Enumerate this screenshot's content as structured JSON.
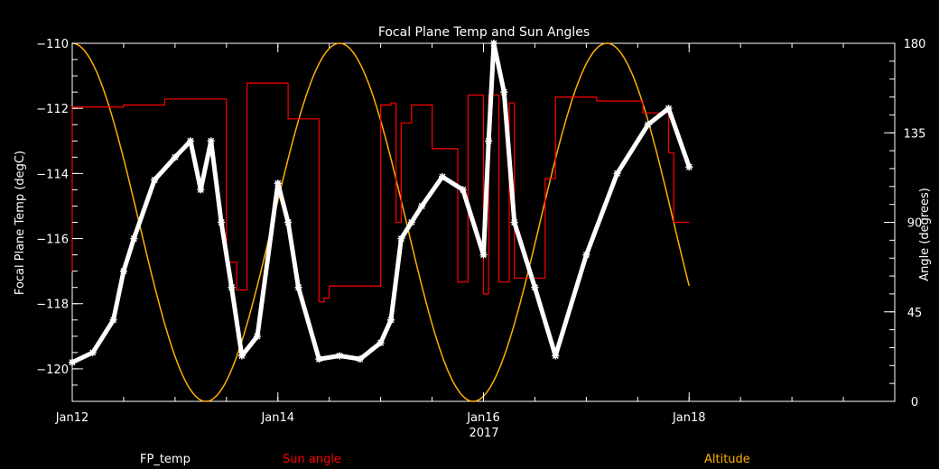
{
  "chart_data": {
    "type": "line",
    "title": "Focal Plane Temp and Sun Angles",
    "xlabel": "2017",
    "ylabel_left": "Focal Plane Temp (degC)",
    "ylabel_right": "Angle (degrees)",
    "xlim": [
      12,
      20
    ],
    "ylim_left": [
      -121,
      -110
    ],
    "ylim_right": [
      0,
      180
    ],
    "x_ticks": [
      "Jan12",
      "Jan14",
      "Jan16",
      "Jan18"
    ],
    "x_tick_values": [
      12,
      14,
      16,
      18
    ],
    "y_left_ticks": [
      -120,
      -118,
      -116,
      -114,
      -112,
      -110
    ],
    "y_right_ticks": [
      0,
      45,
      90,
      135,
      180
    ],
    "grid": false,
    "legend": {
      "fp_temp": "FP_temp",
      "sun_angle": "Sun angle",
      "altitude": "Altitude"
    },
    "colors": {
      "fp_temp": "#ffffff",
      "sun_angle": "#ff0000",
      "altitude": "#ffb000",
      "axes": "#ffffff",
      "background": "#000000"
    },
    "series": [
      {
        "name": "FP_temp",
        "axis": "left",
        "marker": "star",
        "x": [
          12.0,
          12.2,
          12.4,
          12.5,
          12.6,
          12.8,
          13.0,
          13.15,
          13.25,
          13.35,
          13.45,
          13.55,
          13.65,
          13.8,
          14.0,
          14.1,
          14.2,
          14.4,
          14.6,
          14.8,
          15.0,
          15.1,
          15.2,
          15.3,
          15.4,
          15.6,
          15.8,
          16.0,
          16.05,
          16.1,
          16.2,
          16.3,
          16.5,
          16.7,
          17.0,
          17.3,
          17.6,
          17.8,
          18.0
        ],
        "y": [
          -119.8,
          -119.5,
          -118.5,
          -117.0,
          -116.0,
          -114.2,
          -113.5,
          -113.0,
          -114.5,
          -113.0,
          -115.5,
          -117.5,
          -119.6,
          -119.0,
          -114.3,
          -115.5,
          -117.5,
          -119.7,
          -119.6,
          -119.7,
          -119.2,
          -118.5,
          -116.0,
          -115.5,
          -115.0,
          -114.1,
          -114.5,
          -116.5,
          -113.0,
          -110.0,
          -111.5,
          -115.5,
          -117.5,
          -119.6,
          -116.5,
          -114.0,
          -112.5,
          -112.0,
          -113.8
        ]
      },
      {
        "name": "Sun angle",
        "axis": "right",
        "x": [
          12.0,
          12.0,
          12.1,
          12.1,
          12.5,
          12.5,
          12.9,
          12.9,
          13.1,
          13.1,
          13.5,
          13.5,
          13.6,
          13.6,
          13.7,
          13.7,
          14.1,
          14.1,
          14.4,
          14.4,
          14.45,
          14.45,
          14.5,
          14.5,
          15.0,
          15.0,
          15.1,
          15.1,
          15.15,
          15.15,
          15.2,
          15.2,
          15.3,
          15.3,
          15.5,
          15.5,
          15.75,
          15.75,
          15.85,
          15.85,
          16.0,
          16.0,
          16.05,
          16.05,
          16.15,
          16.15,
          16.25,
          16.25,
          16.3,
          16.3,
          16.6,
          16.6,
          16.7,
          16.7,
          17.1,
          17.1,
          17.55,
          17.55,
          17.75,
          17.75,
          17.8,
          17.8,
          17.85,
          17.85,
          17.9,
          17.9,
          18.0
        ],
        "y": [
          65,
          148,
          148,
          148,
          148,
          149,
          149,
          152,
          152,
          152,
          152,
          70,
          70,
          56,
          56,
          160,
          160,
          142,
          142,
          50,
          50,
          52,
          52,
          58,
          58,
          149,
          149,
          150,
          150,
          90,
          90,
          140,
          140,
          149,
          149,
          127,
          127,
          60,
          60,
          154,
          154,
          54,
          54,
          154,
          154,
          60,
          60,
          150,
          150,
          62,
          62,
          112,
          112,
          153,
          153,
          151,
          151,
          145,
          145,
          145,
          145,
          125,
          125,
          90,
          90,
          90,
          90
        ]
      },
      {
        "name": "Altitude",
        "axis": "right",
        "period_days": 2.6,
        "first_peak": 12.0,
        "min": 0,
        "max": 180,
        "x_end": 18.0
      }
    ]
  }
}
